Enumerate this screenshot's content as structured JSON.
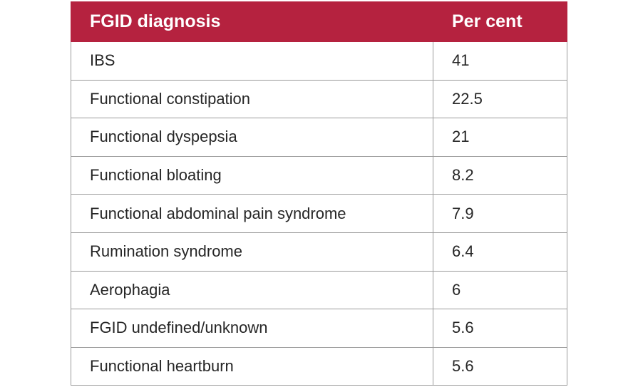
{
  "table": {
    "header": [
      "FGID diagnosis",
      "Per cent"
    ],
    "rows": [
      [
        "IBS",
        41
      ],
      [
        "Functional constipation",
        22.5
      ],
      [
        "Functional dyspepsia",
        21
      ],
      [
        "Functional bloating",
        8.2
      ],
      [
        "Functional abdominal pain syndrome",
        7.9
      ],
      [
        "Rumination syndrome",
        6.4
      ],
      [
        "Aerophagia",
        6
      ],
      [
        "FGID undefined/unknown",
        5.6
      ],
      [
        "Functional heartburn",
        5.6
      ]
    ]
  }
}
